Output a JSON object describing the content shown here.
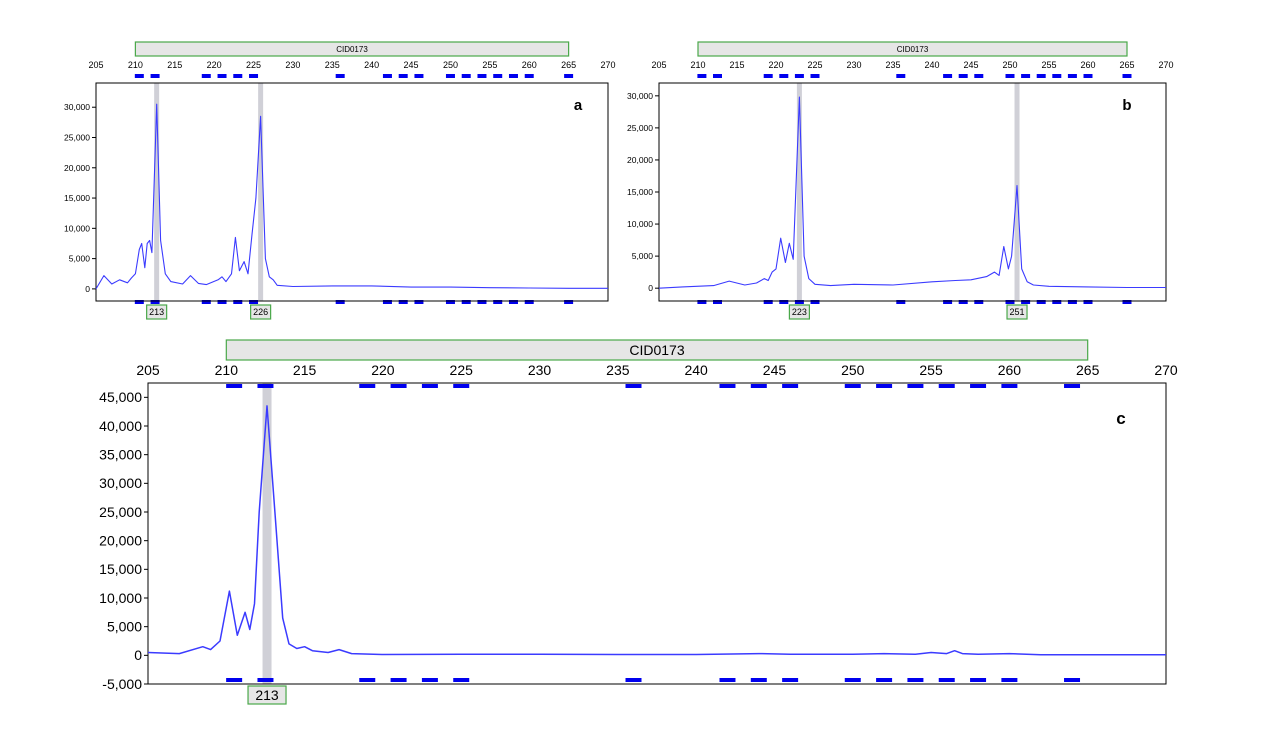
{
  "figure": {
    "colors": {
      "trace": "#3b3bff",
      "bin_marker": "#0000ee",
      "highlight": "#c8c8d0",
      "locus_fill": "#e6e6e6",
      "locus_border": "#4aa84a",
      "allele_border": "#4aa84a"
    }
  },
  "chart_data": [
    {
      "type": "line",
      "panel_label": "a",
      "locus": "CID0173",
      "xlim": [
        205,
        270
      ],
      "ylim": [
        -2000,
        34000
      ],
      "locus_range": [
        210,
        265
      ],
      "x_ticks": [
        205,
        210,
        215,
        220,
        225,
        230,
        235,
        240,
        245,
        250,
        255,
        260,
        265,
        270
      ],
      "y_ticks": [
        0,
        5000,
        10000,
        15000,
        20000,
        25000,
        30000
      ],
      "y_tick_labels": [
        "0",
        "5,000",
        "10,000",
        "15,000",
        "20,000",
        "25,000",
        "30,000"
      ],
      "bins": [
        210.5,
        212.5,
        219,
        221,
        223,
        225,
        236,
        242,
        244,
        246,
        250,
        252,
        254,
        256,
        258,
        260,
        265
      ],
      "alleles": [
        {
          "x": 212.7,
          "label": "213"
        },
        {
          "x": 225.9,
          "label": "226"
        }
      ],
      "series": [
        {
          "x": [
            205,
            206,
            207,
            208,
            209,
            209.5,
            210,
            210.5,
            210.8,
            211.2,
            211.5,
            211.8,
            212.1,
            212.7,
            213.2,
            213.8,
            214.5,
            216,
            217,
            218,
            219,
            220.5,
            221,
            221.5,
            222.2,
            222.7,
            223.2,
            223.8,
            224.3,
            224.8,
            225.3,
            225.9,
            226.5,
            227,
            227.5,
            228,
            230,
            235,
            240,
            245,
            250,
            255,
            260,
            265,
            270
          ],
          "y": [
            0,
            2200,
            800,
            1500,
            1000,
            1800,
            2500,
            6500,
            7500,
            3500,
            7500,
            8000,
            6000,
            30500,
            8000,
            2500,
            1200,
            800,
            2200,
            900,
            700,
            1500,
            2000,
            1200,
            2500,
            8500,
            3000,
            4500,
            2500,
            9000,
            15000,
            28500,
            5000,
            2000,
            1500,
            600,
            400,
            500,
            500,
            300,
            300,
            200,
            150,
            100,
            100
          ]
        }
      ]
    },
    {
      "type": "line",
      "panel_label": "b",
      "locus": "CID0173",
      "xlim": [
        205,
        270
      ],
      "ylim": [
        -2000,
        32000
      ],
      "locus_range": [
        210,
        265
      ],
      "x_ticks": [
        205,
        210,
        215,
        220,
        225,
        230,
        235,
        240,
        245,
        250,
        255,
        260,
        265,
        270
      ],
      "y_ticks": [
        0,
        5000,
        10000,
        15000,
        20000,
        25000,
        30000
      ],
      "y_tick_labels": [
        "0",
        "5,000",
        "10,000",
        "15,000",
        "20,000",
        "25,000",
        "30,000"
      ],
      "bins": [
        210.5,
        212.5,
        219,
        221,
        223,
        225,
        236,
        242,
        244,
        246,
        250,
        252,
        254,
        256,
        258,
        260,
        265
      ],
      "alleles": [
        {
          "x": 223,
          "label": "223"
        },
        {
          "x": 250.9,
          "label": "251"
        }
      ],
      "series": [
        {
          "x": [
            205,
            208,
            212,
            214,
            216,
            217.5,
            218.5,
            219,
            219.5,
            220,
            220.6,
            221.2,
            221.7,
            222.2,
            223,
            223.6,
            224.2,
            225,
            227,
            230,
            235,
            240,
            243,
            245,
            247,
            248,
            248.6,
            249.2,
            249.8,
            250.2,
            250.9,
            251.5,
            252.2,
            253,
            255,
            260,
            265,
            270
          ],
          "y": [
            0,
            200,
            400,
            1100,
            500,
            800,
            1500,
            1200,
            2500,
            3000,
            7800,
            4000,
            7000,
            4500,
            29800,
            5000,
            1500,
            600,
            400,
            600,
            500,
            1000,
            1200,
            1300,
            1800,
            2500,
            2000,
            6500,
            3000,
            5000,
            16000,
            3000,
            1000,
            500,
            300,
            200,
            100,
            100
          ]
        }
      ]
    },
    {
      "type": "line",
      "panel_label": "c",
      "locus": "CID0173",
      "xlim": [
        205,
        270
      ],
      "ylim": [
        -5000,
        47500
      ],
      "locus_range": [
        210,
        265
      ],
      "x_ticks": [
        205,
        210,
        215,
        220,
        225,
        230,
        235,
        240,
        245,
        250,
        255,
        260,
        265,
        270
      ],
      "y_ticks": [
        -5000,
        0,
        5000,
        10000,
        15000,
        20000,
        25000,
        30000,
        35000,
        40000,
        45000
      ],
      "y_tick_labels": [
        "-5,000",
        "0",
        "5,000",
        "10,000",
        "15,000",
        "20,000",
        "25,000",
        "30,000",
        "35,000",
        "40,000",
        "45,000"
      ],
      "bins": [
        210.5,
        212.5,
        219,
        221,
        223,
        225,
        236,
        242,
        244,
        246,
        250,
        252,
        254,
        256,
        258,
        260,
        264
      ],
      "alleles": [
        {
          "x": 212.6,
          "label": "213"
        }
      ],
      "series": [
        {
          "x": [
            205,
            207,
            208.5,
            209,
            209.6,
            210.2,
            210.7,
            211.2,
            211.5,
            211.8,
            212.1,
            212.6,
            213.1,
            213.6,
            214,
            214.5,
            215,
            215.5,
            216.5,
            217.2,
            218,
            220,
            225,
            230,
            235,
            240,
            244,
            246,
            250,
            252,
            254,
            255,
            256,
            256.5,
            257,
            258,
            260,
            262,
            265,
            270
          ],
          "y": [
            500,
            300,
            1500,
            1000,
            2500,
            11200,
            3500,
            7500,
            4500,
            9000,
            25000,
            43500,
            25000,
            6500,
            2000,
            1200,
            1500,
            800,
            500,
            1000,
            300,
            150,
            200,
            200,
            150,
            150,
            300,
            200,
            200,
            300,
            200,
            500,
            300,
            800,
            300,
            200,
            300,
            100,
            100,
            100
          ]
        }
      ]
    }
  ]
}
